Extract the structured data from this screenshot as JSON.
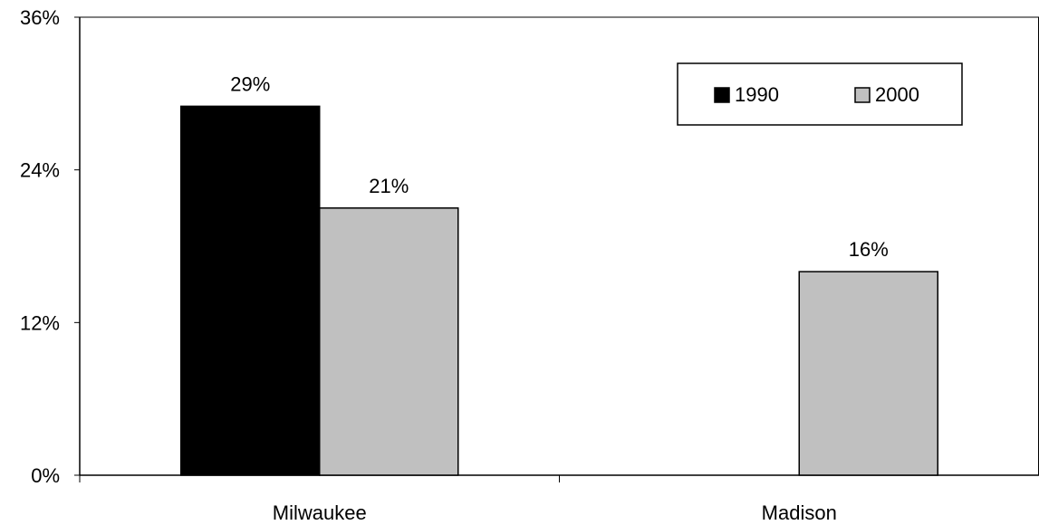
{
  "chart_data": {
    "type": "bar",
    "categories": [
      "Milwaukee",
      "Madison"
    ],
    "series": [
      {
        "name": "1990",
        "values": [
          29,
          null
        ],
        "color": "#000000"
      },
      {
        "name": "2000",
        "values": [
          21,
          16
        ],
        "color": "#c0c0c0"
      }
    ],
    "data_labels": [
      [
        "29%",
        null
      ],
      [
        "21%",
        "16%"
      ]
    ],
    "ylim": [
      0,
      36
    ],
    "yticks": [
      0,
      12,
      24,
      36
    ],
    "ytick_labels": [
      "0%",
      "12%",
      "24%",
      "36%"
    ],
    "grid": false,
    "legend": {
      "position": "top-right",
      "entries": [
        "1990",
        "2000"
      ]
    },
    "title": "",
    "xlabel": "",
    "ylabel": ""
  }
}
